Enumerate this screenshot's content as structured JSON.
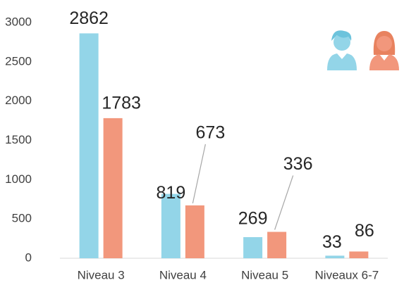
{
  "chart_data": {
    "type": "bar",
    "categories": [
      "Niveau 3",
      "Niveau 4",
      "Niveau 5",
      "Niveaux 6-7"
    ],
    "series": [
      {
        "color": "#93d5e8",
        "values": [
          2862,
          819,
          269,
          33
        ]
      },
      {
        "color": "#f2977c",
        "values": [
          1783,
          673,
          336,
          86
        ]
      }
    ],
    "ylim": [
      0,
      3000
    ],
    "yticks": [
      0,
      500,
      1000,
      1500,
      2000,
      2500,
      3000
    ],
    "grid": false
  }
}
